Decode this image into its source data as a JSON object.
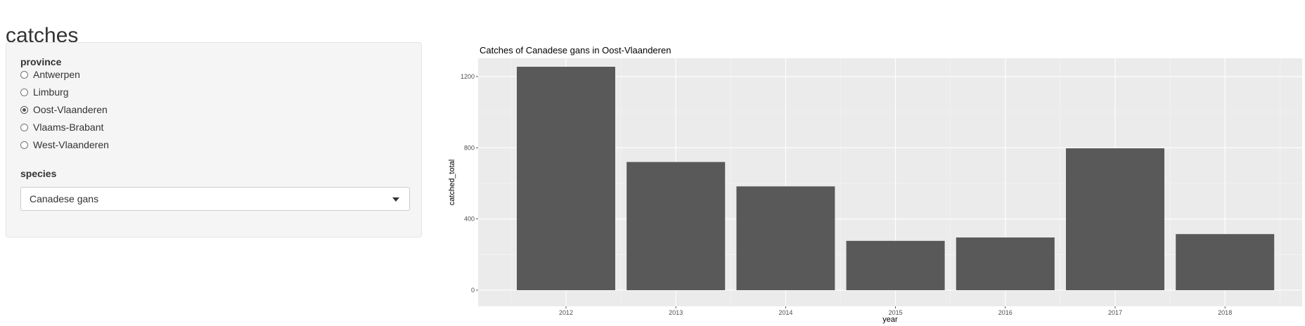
{
  "page_title": "catches",
  "sidebar": {
    "province_label": "province",
    "provinces": [
      {
        "label": "Antwerpen",
        "checked": false
      },
      {
        "label": "Limburg",
        "checked": false
      },
      {
        "label": "Oost-Vlaanderen",
        "checked": true
      },
      {
        "label": "Vlaams-Brabant",
        "checked": false
      },
      {
        "label": "West-Vlaanderen",
        "checked": false
      }
    ],
    "species_label": "species",
    "species_selected": "Canadese gans"
  },
  "chart_data": {
    "type": "bar",
    "title": "Catches of Canadese gans in Oost-Vlaanderen",
    "xlabel": "year",
    "ylabel": "catched_total",
    "categories": [
      "2012",
      "2013",
      "2014",
      "2015",
      "2016",
      "2017",
      "2018"
    ],
    "values": [
      1255,
      720,
      583,
      277,
      296,
      797,
      315
    ],
    "yticks": [
      0,
      400,
      800,
      1200
    ],
    "ylim": [
      0,
      1320
    ],
    "bar_color": "#595959",
    "panel_color": "#ebebeb",
    "grid_color": "#ffffff"
  }
}
